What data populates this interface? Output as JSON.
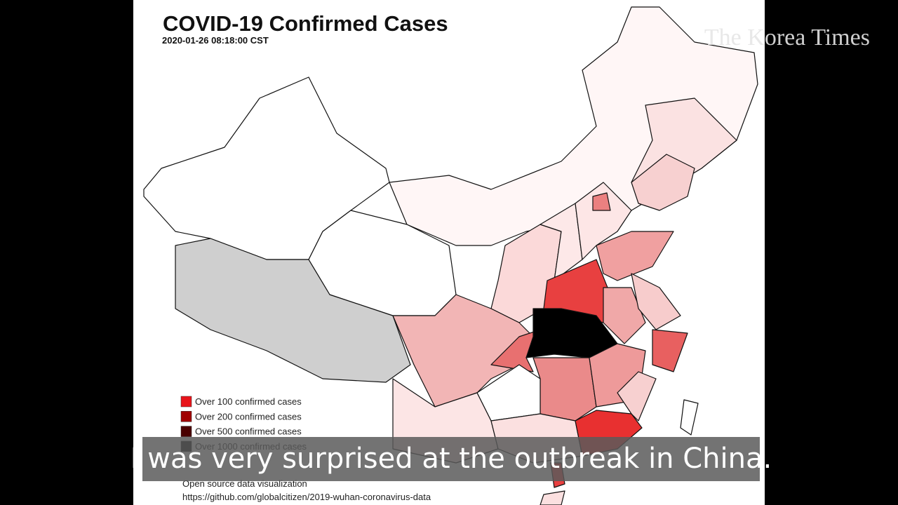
{
  "header": {
    "title": "COVID-19 Confirmed Cases",
    "timestamp": "2020-01-26 08:18:00 CST",
    "watermark": "The Korea Times"
  },
  "legend": [
    {
      "label": "Over 100 confirmed cases",
      "color": "#e8141a"
    },
    {
      "label": "Over 200 confirmed cases",
      "color": "#a00000"
    },
    {
      "label": "Over 500 confirmed cases",
      "color": "#4a0000"
    },
    {
      "label": "Over 1000 confirmed cases",
      "color": "#000000"
    }
  ],
  "footer": {
    "line1": "Open source data visualization",
    "line2": "https://github.com/globalcitizen/2019-wuhan-coronavirus-data"
  },
  "subtitle": "I was very surprised at the outbreak in China."
}
